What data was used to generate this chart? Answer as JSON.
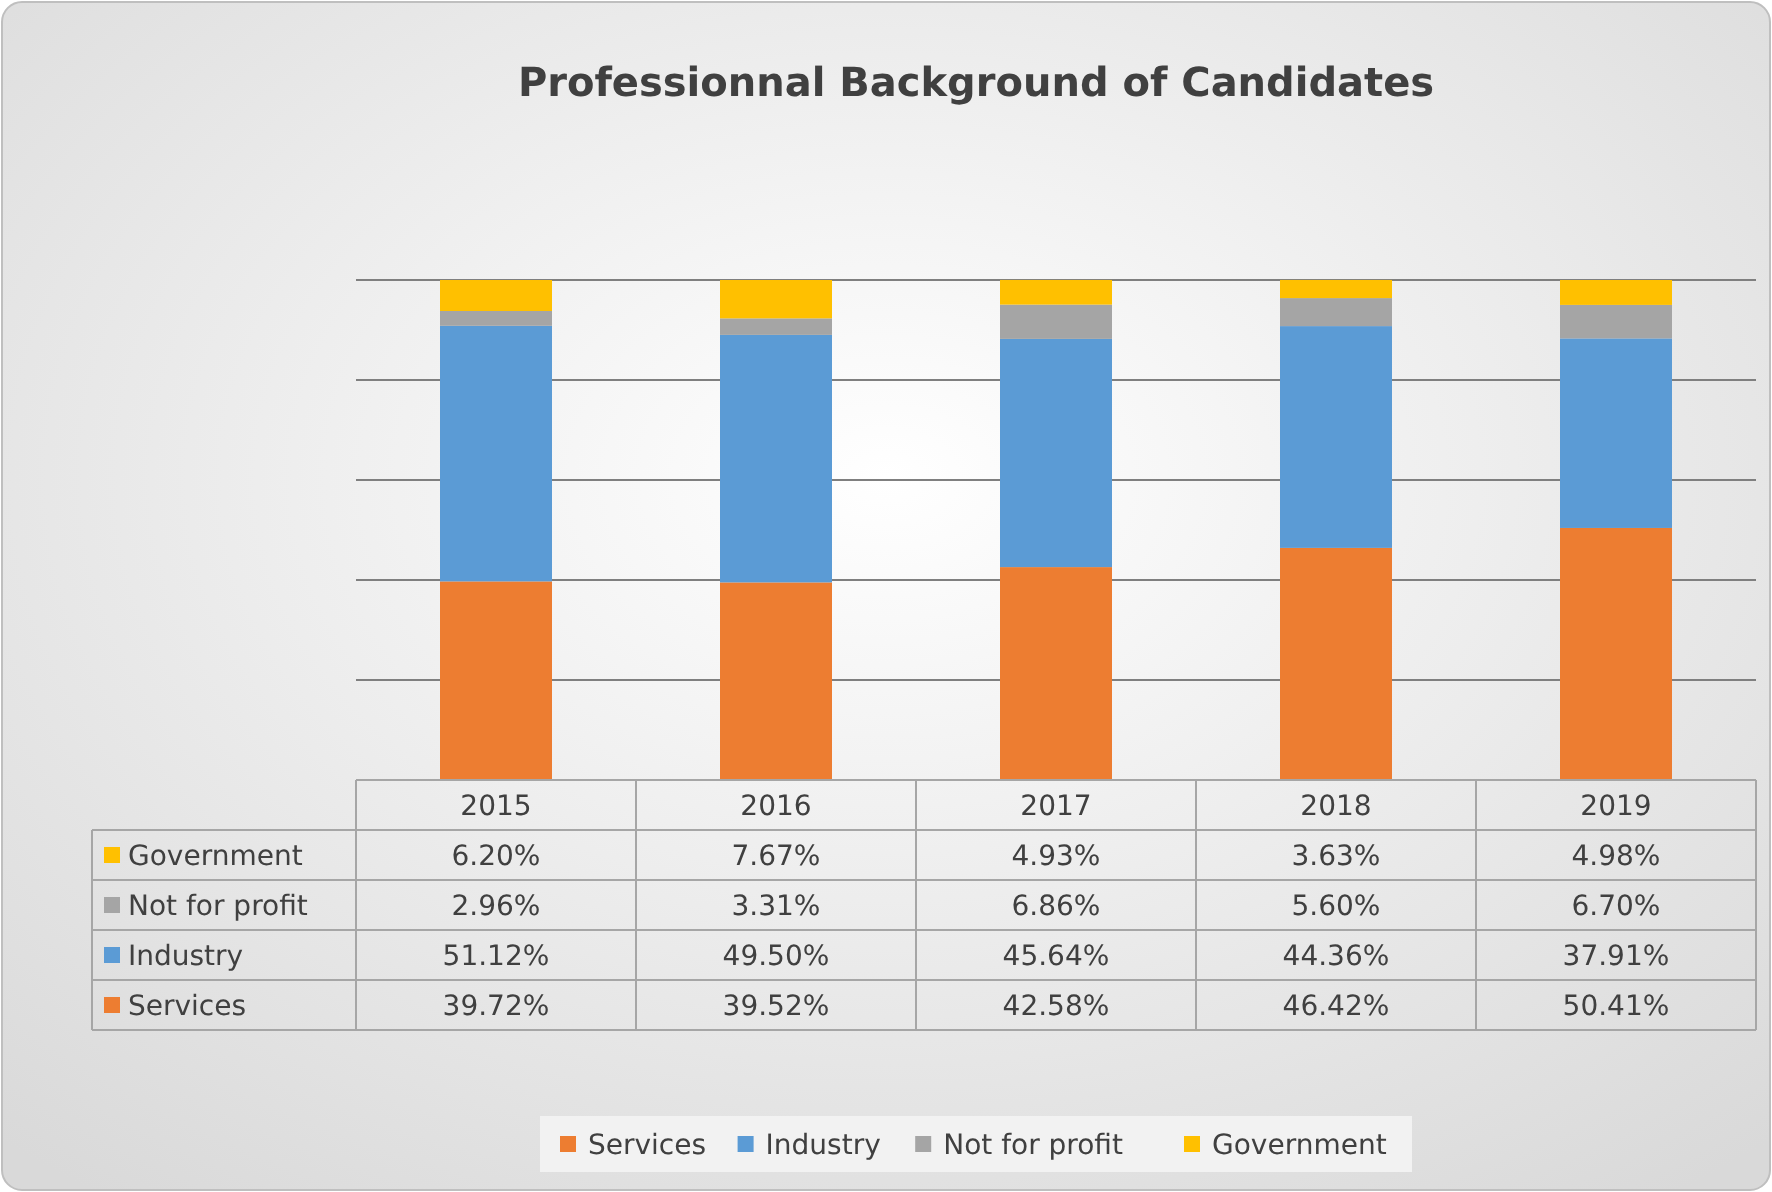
{
  "chart_data": {
    "type": "bar",
    "title": "Professionnal Background of Candidates",
    "categories": [
      "2015",
      "2016",
      "2017",
      "2018",
      "2019"
    ],
    "stacked": true,
    "ylim": [
      0,
      100
    ],
    "yticks": [
      {
        "value": 0,
        "label": null
      },
      {
        "value": 20,
        "label": null
      },
      {
        "value": 40,
        "label": null
      },
      {
        "value": 60,
        "label": null
      },
      {
        "value": 80,
        "label": null
      },
      {
        "value": 100,
        "label": null
      }
    ],
    "tick_labels": "x",
    "grid": "y",
    "legend": "bottom",
    "series": [
      {
        "name": "Services",
        "color": "#ed7d31",
        "values": [
          39.72,
          39.52,
          42.58,
          46.42,
          50.41
        ],
        "value_labels": [
          "39.72%",
          "39.52%",
          "42.58%",
          "46.42%",
          "50.41%"
        ]
      },
      {
        "name": "Industry",
        "color": "#5b9bd5",
        "values": [
          51.12,
          49.5,
          45.64,
          44.36,
          37.91
        ],
        "value_labels": [
          "51.12%",
          "49.50%",
          "45.64%",
          "44.36%",
          "37.91%"
        ]
      },
      {
        "name": "Not for profit",
        "color": "#a5a5a5",
        "values": [
          2.96,
          3.31,
          6.86,
          5.6,
          6.7
        ],
        "value_labels": [
          "2.96%",
          "3.31%",
          "6.86%",
          "5.60%",
          "6.70%"
        ]
      },
      {
        "name": "Government",
        "color": "#ffc000",
        "values": [
          6.2,
          7.67,
          4.93,
          3.63,
          4.98
        ],
        "value_labels": [
          "6.20%",
          "7.67%",
          "4.93%",
          "3.63%",
          "4.98%"
        ]
      }
    ]
  }
}
